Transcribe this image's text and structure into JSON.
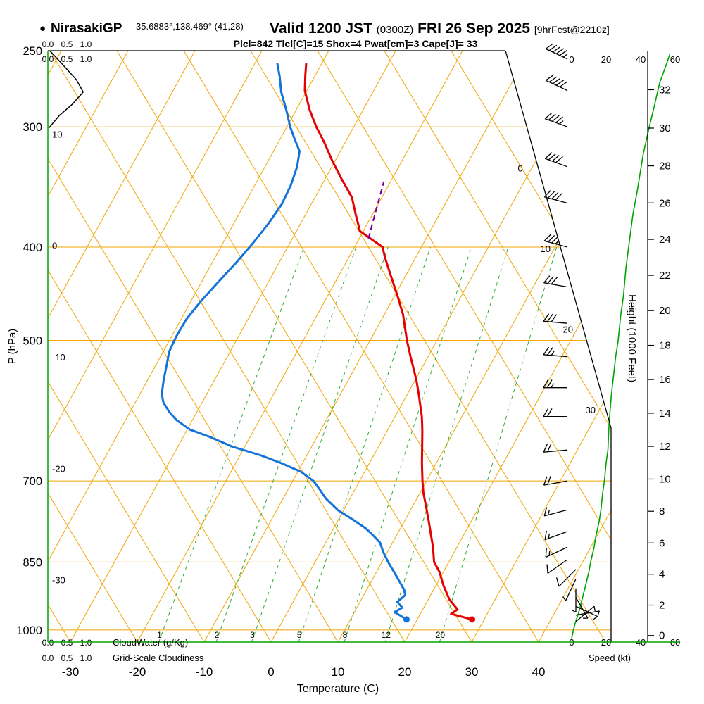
{
  "header": {
    "marker": "●",
    "station": "NirasakiGP",
    "coords": "35.6883°,138.469° (41,28)",
    "valid": "Valid 1200 JST ",
    "valid_z": "(0300Z)",
    "valid_date": " FRI 26 Sep 2025 ",
    "forecast": "[9hrFcst@2210z]",
    "indices": "Plcl=842 Tlcl[C]=15 Shox=4 Pwat[cm]=3 Cape[J]= 33"
  },
  "axes": {
    "pressure_label": "P (hPa)",
    "pressure_ticks": [
      250,
      300,
      400,
      500,
      700,
      850,
      1000
    ],
    "temperature_label": "Temperature (C)",
    "temperature_ticks": [
      -30,
      -20,
      -10,
      0,
      10,
      20,
      30,
      40
    ],
    "height_label": "Height (1000 Feet)",
    "height_ticks": [
      0,
      2,
      4,
      6,
      8,
      10,
      12,
      14,
      16,
      18,
      20,
      22,
      24,
      26,
      28,
      30,
      32
    ],
    "speed_label": "Speed (kt)",
    "speed_ticks": [
      0,
      20,
      40,
      60
    ],
    "cloudwater_label": "CloudWater (g/Kg)",
    "cloudwater_scale": [
      "0.0",
      "0.5",
      "1.0"
    ],
    "cloudiness_label": "Grid-Scale Cloudiness",
    "cloudiness_scale": [
      "0.0",
      "0.5",
      "1.0"
    ]
  },
  "grid": {
    "isobars": [
      300,
      400,
      500,
      700,
      850,
      1000
    ],
    "isotherm_labels": [
      0,
      10,
      20,
      30
    ],
    "adiabat_labels": [
      10,
      0,
      -10,
      -20,
      -30
    ],
    "mixing_ratio": [
      1,
      2,
      3,
      5,
      8,
      12,
      20
    ]
  },
  "colors": {
    "grid_orange": "#f0a500",
    "axis_green": "#00a400",
    "mixing_green": "#2fae2f",
    "temp_red": "#e60000",
    "dewpoint_blue": "#1273d8",
    "parcel_purple": "#7d00a0",
    "indices_purple": "#aa00aa",
    "black": "#000000"
  },
  "chart_data": {
    "type": "line",
    "subtype": "skew-t-log-p-sounding",
    "title": "NirasakiGP sounding valid 1200 JST (0300Z) FRI 26 Sep 2025, 9hr forecast from 2210z",
    "x_axis": {
      "label": "Temperature (C)",
      "range": [
        -35,
        45
      ]
    },
    "y_axis": {
      "label": "P (hPa)",
      "range": [
        1029,
        250
      ],
      "scale": "log"
    },
    "legend_position": "none",
    "grid_on": true,
    "series": [
      {
        "name": "temperature",
        "color": "#e60000",
        "units": "C",
        "points": [
          [
            975,
            28.2
          ],
          [
            962,
            24.6
          ],
          [
            952,
            25.2
          ],
          [
            930,
            23.2
          ],
          [
            900,
            21.2
          ],
          [
            870,
            19.4
          ],
          [
            850,
            17.8
          ],
          [
            820,
            16.4
          ],
          [
            800,
            15.3
          ],
          [
            770,
            13.6
          ],
          [
            750,
            12.4
          ],
          [
            720,
            10.5
          ],
          [
            700,
            9.4
          ],
          [
            670,
            7.8
          ],
          [
            650,
            6.8
          ],
          [
            620,
            5.2
          ],
          [
            600,
            4.0
          ],
          [
            570,
            1.8
          ],
          [
            550,
            0.2
          ],
          [
            520,
            -2.6
          ],
          [
            500,
            -4.5
          ],
          [
            470,
            -7.2
          ],
          [
            450,
            -9.5
          ],
          [
            430,
            -12.0
          ],
          [
            410,
            -14.6
          ],
          [
            400,
            -15.8
          ],
          [
            385,
            -20.5
          ],
          [
            370,
            -22.5
          ],
          [
            355,
            -24.5
          ],
          [
            340,
            -27.5
          ],
          [
            325,
            -30.5
          ],
          [
            312,
            -33.0
          ],
          [
            300,
            -35.6
          ],
          [
            288,
            -38.0
          ],
          [
            275,
            -40.3
          ],
          [
            265,
            -41.5
          ],
          [
            258,
            -42.3
          ]
        ]
      },
      {
        "name": "dewpoint",
        "color": "#1273d8",
        "units": "C",
        "points": [
          [
            975,
            18.4
          ],
          [
            958,
            16.0
          ],
          [
            948,
            16.8
          ],
          [
            935,
            15.6
          ],
          [
            920,
            16.2
          ],
          [
            908,
            15.6
          ],
          [
            890,
            14.2
          ],
          [
            870,
            12.6
          ],
          [
            852,
            11.1
          ],
          [
            830,
            9.4
          ],
          [
            811,
            8.1
          ],
          [
            795,
            6.2
          ],
          [
            784,
            4.8
          ],
          [
            768,
            2.2
          ],
          [
            751,
            -0.8
          ],
          [
            730,
            -3.6
          ],
          [
            715,
            -5.2
          ],
          [
            700,
            -6.9
          ],
          [
            685,
            -9.5
          ],
          [
            671,
            -13.1
          ],
          [
            658,
            -17.0
          ],
          [
            645,
            -21.8
          ],
          [
            630,
            -26.0
          ],
          [
            619,
            -29.6
          ],
          [
            605,
            -32.4
          ],
          [
            593,
            -34.2
          ],
          [
            580,
            -35.8
          ],
          [
            569,
            -36.7
          ],
          [
            550,
            -37.6
          ],
          [
            530,
            -38.4
          ],
          [
            514,
            -39.1
          ],
          [
            495,
            -39.3
          ],
          [
            475,
            -39.2
          ],
          [
            455,
            -38.5
          ],
          [
            435,
            -37.5
          ],
          [
            415,
            -36.4
          ],
          [
            396,
            -35.5
          ],
          [
            378,
            -34.8
          ],
          [
            361,
            -34.4
          ],
          [
            345,
            -34.6
          ],
          [
            330,
            -35.2
          ],
          [
            318,
            -36.1
          ],
          [
            308,
            -38.0
          ],
          [
            300,
            -39.5
          ],
          [
            288,
            -41.5
          ],
          [
            276,
            -43.7
          ],
          [
            266,
            -45.2
          ],
          [
            258,
            -46.6
          ]
        ]
      },
      {
        "name": "parcel",
        "color": "#7d00a0",
        "units": "C",
        "style": "dashed",
        "points": [
          [
            392,
            -18.6
          ],
          [
            375,
            -19.4
          ],
          [
            358,
            -20.2
          ],
          [
            342,
            -21.0
          ]
        ]
      },
      {
        "name": "cloud_water",
        "color": "#000000",
        "units": "g/kg",
        "points": [
          [
            250,
            0.05
          ],
          [
            260,
            0.45
          ],
          [
            268,
            0.75
          ],
          [
            276,
            0.93
          ],
          [
            284,
            0.65
          ],
          [
            292,
            0.3
          ],
          [
            301,
            0.02
          ]
        ]
      },
      {
        "name": "wind_speed",
        "color": "#00a400",
        "units": "kt",
        "points": [
          [
            1020,
            0
          ],
          [
            1000,
            1
          ],
          [
            985,
            2
          ],
          [
            960,
            4
          ],
          [
            930,
            6
          ],
          [
            900,
            8
          ],
          [
            870,
            10
          ],
          [
            850,
            11
          ],
          [
            820,
            13
          ],
          [
            800,
            14
          ],
          [
            770,
            16
          ],
          [
            750,
            17
          ],
          [
            720,
            18
          ],
          [
            700,
            19
          ],
          [
            670,
            20
          ],
          [
            650,
            21
          ],
          [
            620,
            21.5
          ],
          [
            600,
            22
          ],
          [
            570,
            23
          ],
          [
            550,
            24
          ],
          [
            520,
            25.5
          ],
          [
            500,
            27
          ],
          [
            470,
            28.5
          ],
          [
            450,
            30
          ],
          [
            420,
            31.5
          ],
          [
            400,
            33
          ],
          [
            370,
            35.5
          ],
          [
            350,
            38
          ],
          [
            320,
            41.5
          ],
          [
            300,
            45
          ],
          [
            285,
            48
          ],
          [
            270,
            51
          ],
          [
            258,
            55
          ],
          [
            252,
            57
          ]
        ]
      }
    ],
    "wind_barbs": {
      "units": "kt",
      "format": [
        "pressure_hPa",
        "speed_kt",
        "direction_deg_from"
      ],
      "points": [
        [
          255,
          55,
          295
        ],
        [
          275,
          50,
          295
        ],
        [
          300,
          45,
          290
        ],
        [
          330,
          42,
          290
        ],
        [
          360,
          38,
          285
        ],
        [
          400,
          33,
          285
        ],
        [
          440,
          30,
          280
        ],
        [
          480,
          28,
          275
        ],
        [
          520,
          26,
          275
        ],
        [
          560,
          24,
          270
        ],
        [
          600,
          22,
          270
        ],
        [
          650,
          20,
          265
        ],
        [
          700,
          19,
          260
        ],
        [
          750,
          17,
          255
        ],
        [
          790,
          14,
          250
        ],
        [
          820,
          13,
          245
        ],
        [
          845,
          11,
          235
        ],
        [
          865,
          9,
          225
        ],
        [
          885,
          7,
          205
        ],
        [
          905,
          5,
          180
        ],
        [
          925,
          4,
          150
        ],
        [
          945,
          3,
          115
        ],
        [
          965,
          2,
          80
        ],
        [
          980,
          1,
          50
        ]
      ]
    }
  }
}
